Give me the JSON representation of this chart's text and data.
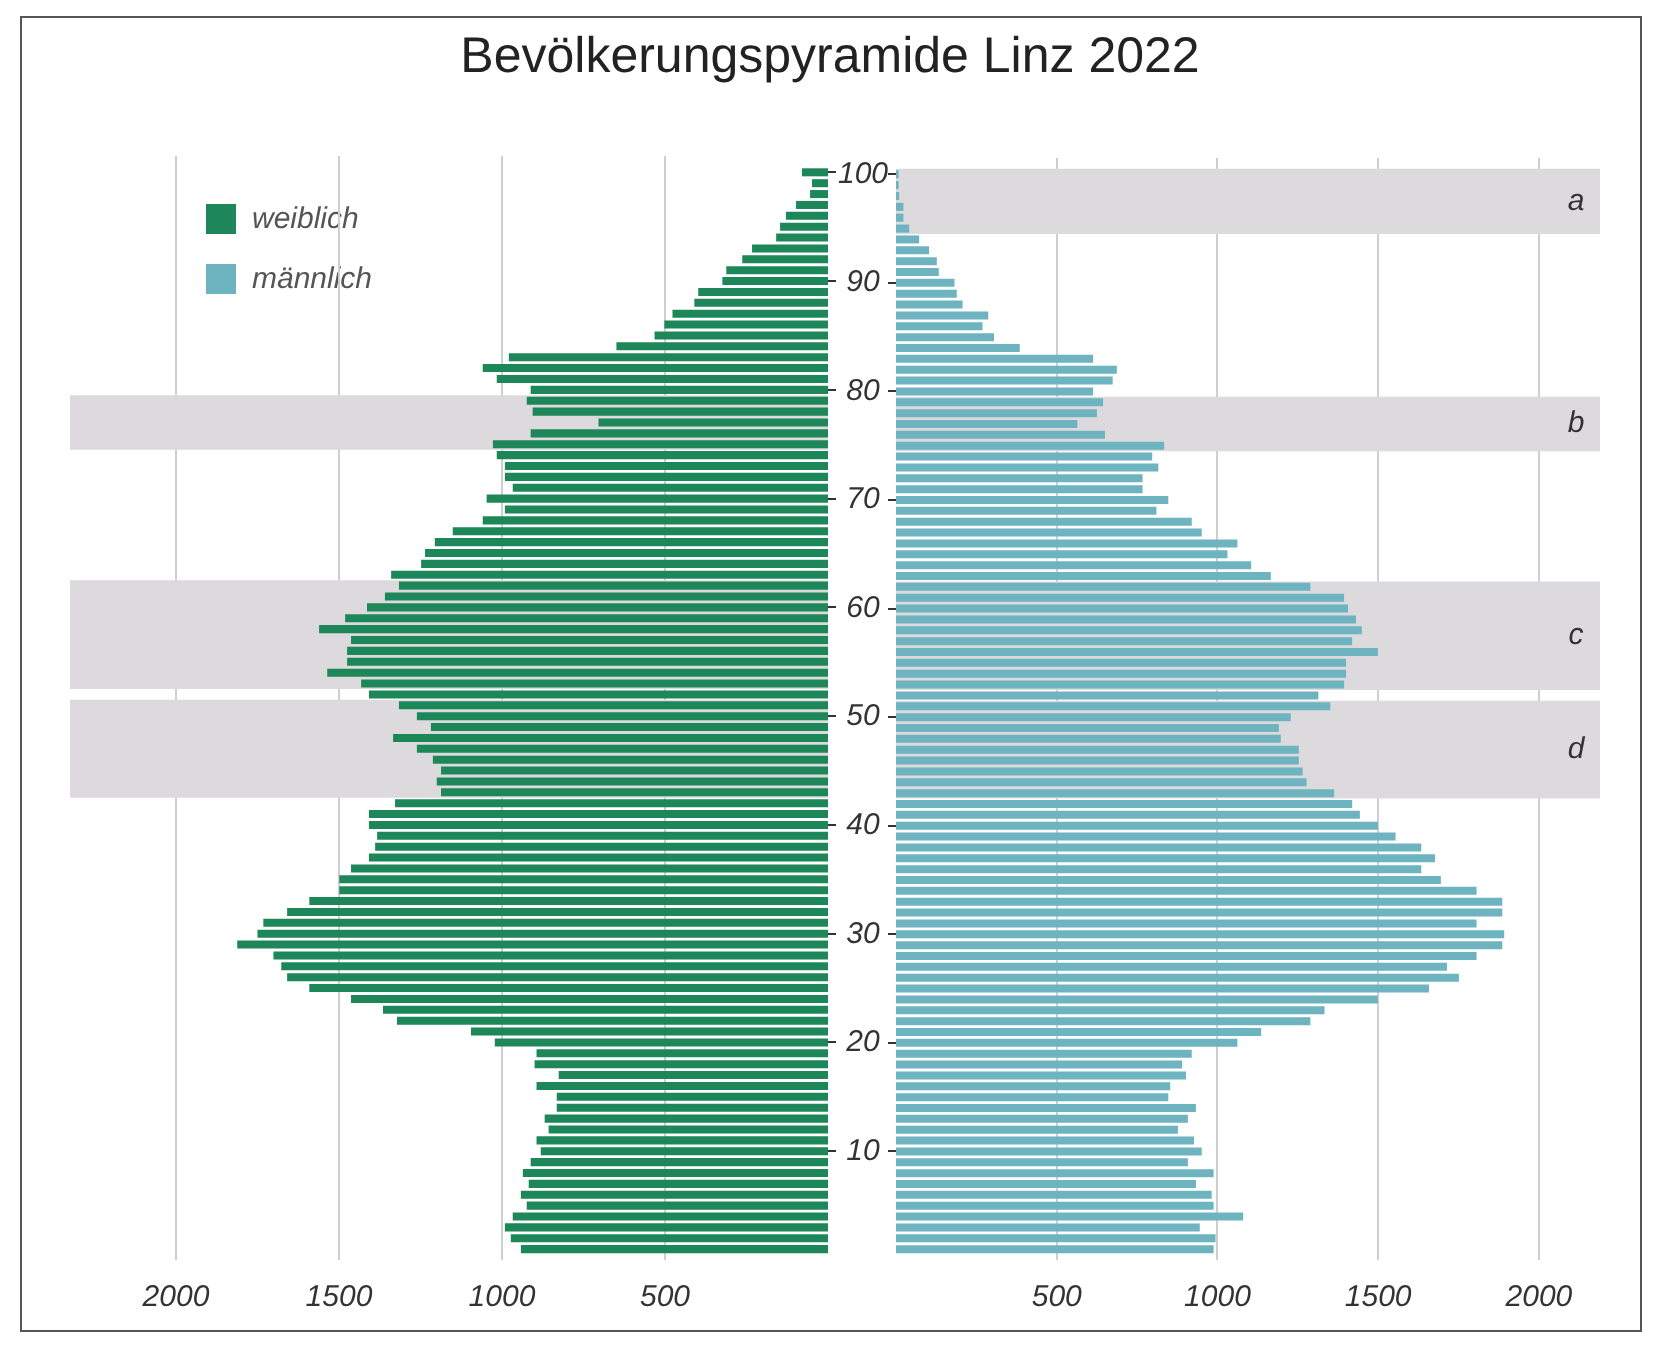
{
  "chart_data": [
    {
      "type": "bar",
      "title": "Bevölkerungspyramide Linz 2022",
      "orientation": "horizontal",
      "legend": "top left",
      "grid": "x",
      "tick_labels": "x",
      "x": [
        1,
        2,
        3,
        4,
        5,
        6,
        7,
        8,
        9,
        10,
        11,
        12,
        13,
        14,
        15,
        16,
        17,
        18,
        19,
        20,
        21,
        22,
        23,
        24,
        25,
        26,
        27,
        28,
        29,
        30,
        31,
        32,
        33,
        34,
        35,
        36,
        37,
        38,
        39,
        40,
        41,
        42,
        43,
        44,
        45,
        46,
        47,
        48,
        49,
        50,
        51,
        52,
        53,
        54,
        55,
        56,
        57,
        58,
        59,
        60,
        61,
        62,
        63,
        64,
        65,
        66,
        67,
        68,
        69,
        70,
        71,
        72,
        73,
        74,
        75,
        76,
        77,
        78,
        79,
        80,
        81,
        82,
        83,
        84,
        85,
        86,
        87,
        88,
        89,
        90,
        91,
        92,
        93,
        94,
        95,
        96,
        97,
        98,
        99,
        100
      ],
      "series": [
        {
          "name": "weiblich",
          "color": "#1e8759",
          "values": [
            942,
            973,
            991,
            967,
            924,
            942,
            918,
            936,
            912,
            881,
            894,
            857,
            869,
            832,
            832,
            894,
            826,
            900,
            894,
            1022,
            1095,
            1322,
            1365,
            1463,
            1591,
            1659,
            1677,
            1701,
            1812,
            1750,
            1732,
            1659,
            1591,
            1499,
            1499,
            1463,
            1408,
            1389,
            1383,
            1408,
            1408,
            1328,
            1187,
            1200,
            1187,
            1212,
            1261,
            1334,
            1218,
            1261,
            1316,
            1408,
            1432,
            1536,
            1475,
            1475,
            1463,
            1561,
            1481,
            1414,
            1359,
            1316,
            1340,
            1248,
            1236,
            1206,
            1151,
            1059,
            991,
            1047,
            967,
            991,
            991,
            1016,
            1028,
            912,
            704,
            906,
            924,
            912,
            1016,
            1059,
            979,
            649,
            532,
            502,
            477,
            410,
            398,
            324,
            312,
            263,
            233,
            159,
            147,
            129,
            98,
            55,
            49,
            80
          ]
        }
      ],
      "xlim": [
        2325,
        0
      ],
      "xticks": [
        2000,
        1500,
        1000,
        500
      ],
      "ylim": [
        0,
        101.5
      ],
      "yticks": [
        10,
        20,
        30,
        40,
        50,
        60,
        70,
        80,
        90,
        100
      ],
      "bands": [
        {
          "axis": "y",
          "from": 74.5,
          "to": 79.5,
          "color": "#dcdadd"
        },
        {
          "axis": "y",
          "from": 52.5,
          "to": 62.5,
          "color": "#dcdadd"
        },
        {
          "axis": "y",
          "from": 42.5,
          "to": 51.5,
          "color": "#dcdadd"
        }
      ]
    },
    {
      "type": "bar",
      "orientation": "horizontal",
      "legend": "top left",
      "grid": "x",
      "x": [
        1,
        2,
        3,
        4,
        5,
        6,
        7,
        8,
        9,
        10,
        11,
        12,
        13,
        14,
        15,
        16,
        17,
        18,
        19,
        20,
        21,
        22,
        23,
        24,
        25,
        26,
        27,
        28,
        29,
        30,
        31,
        32,
        33,
        34,
        35,
        36,
        37,
        38,
        39,
        40,
        41,
        42,
        43,
        44,
        45,
        46,
        47,
        48,
        49,
        50,
        51,
        52,
        53,
        54,
        55,
        56,
        57,
        58,
        59,
        60,
        61,
        62,
        63,
        64,
        65,
        66,
        67,
        68,
        69,
        70,
        71,
        72,
        73,
        74,
        75,
        76,
        77,
        78,
        79,
        80,
        81,
        82,
        83,
        84,
        85,
        86,
        87,
        88,
        89,
        90,
        91,
        92,
        93,
        94,
        95,
        96,
        97,
        98,
        99,
        100
      ],
      "series": [
        {
          "name": "männlich",
          "color": "#6db3c0",
          "values": [
            988,
            994,
            945,
            1080,
            988,
            982,
            933,
            988,
            908,
            951,
            927,
            877,
            908,
            933,
            847,
            853,
            902,
            890,
            920,
            1062,
            1136,
            1289,
            1333,
            1499,
            1658,
            1751,
            1714,
            1806,
            1886,
            1892,
            1806,
            1886,
            1886,
            1806,
            1695,
            1634,
            1677,
            1634,
            1554,
            1499,
            1443,
            1419,
            1363,
            1277,
            1265,
            1253,
            1253,
            1197,
            1191,
            1228,
            1351,
            1314,
            1394,
            1400,
            1400,
            1499,
            1419,
            1449,
            1431,
            1406,
            1394,
            1289,
            1166,
            1105,
            1031,
            1062,
            951,
            920,
            810,
            847,
            767,
            767,
            816,
            797,
            834,
            650,
            564,
            625,
            644,
            613,
            674,
            687,
            613,
            385,
            305,
            269,
            287,
            207,
            189,
            182,
            133,
            127,
            103,
            72,
            41,
            23,
            23,
            10,
            8,
            8
          ]
        }
      ],
      "xlim": [
        0,
        2190
      ],
      "xticks": [
        500,
        1000,
        1500,
        2000
      ],
      "ylim": [
        0,
        101.5
      ],
      "yticks": [
        10,
        20,
        30,
        40,
        50,
        60,
        70,
        80,
        90,
        100
      ],
      "bands": [
        {
          "axis": "y",
          "from": 94.5,
          "to": 100.5,
          "label": "a",
          "color": "#dcdadd"
        },
        {
          "axis": "y",
          "from": 74.5,
          "to": 79.5,
          "label": "b",
          "color": "#dcdadd"
        },
        {
          "axis": "y",
          "from": 52.5,
          "to": 62.5,
          "label": "c",
          "color": "#dcdadd"
        },
        {
          "axis": "y",
          "from": 42.5,
          "to": 51.5,
          "label": "d",
          "color": "#dcdadd"
        }
      ]
    }
  ]
}
